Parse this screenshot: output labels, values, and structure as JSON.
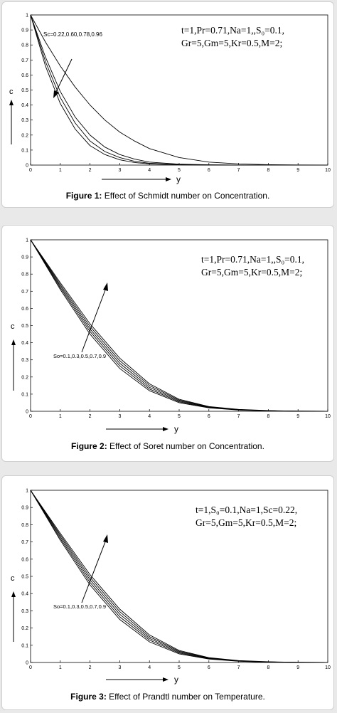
{
  "figures": [
    {
      "caption_label": "Figure 1:",
      "caption_text": " Effect of Schmidt number on Concentration.",
      "params": [
        "t=1,Pr=0.71,Na=1,,S₀=0.1,",
        "Gr=5,Gm=5,Kr=0.5,M=2;"
      ],
      "annotation": "Sc=0.22,0.60,0.78,0.96",
      "xlabel": "y",
      "ylabel": "c"
    },
    {
      "caption_label": "Figure 2:",
      "caption_text": " Effect of Soret number on Concentration.",
      "params": [
        "t=1,Pr=0.71,Na=1,,S₀=0.1,",
        "Gr=5,Gm=5,Kr=0.5,M=2;"
      ],
      "annotation": "So=0.1,0.3,0.5,0.7,0.9",
      "xlabel": "y",
      "ylabel": "c"
    },
    {
      "caption_label": "Figure 3:",
      "caption_text": " Effect of Prandtl number on Temperature.",
      "params": [
        "t=1,S₀=0.1,Na=1,Sc=0.22,",
        "Gr=5,Gm=5,Kr=0.5,M=2;"
      ],
      "annotation": "So=0.1,0.3,0.5,0.7,0.9",
      "xlabel": "y",
      "ylabel": "c"
    }
  ],
  "chart_data": [
    {
      "type": "line",
      "xlabel": "y",
      "ylabel": "c",
      "xlim": [
        0,
        10
      ],
      "ylim": [
        0,
        1
      ],
      "xticks": [
        0,
        1,
        2,
        3,
        4,
        5,
        6,
        7,
        8,
        9,
        10
      ],
      "yticks": [
        0,
        0.1,
        0.2,
        0.3,
        0.4,
        0.5,
        0.6,
        0.7,
        0.8,
        0.9,
        1
      ],
      "grid": false,
      "series": [
        {
          "x": [
            0,
            0.5,
            1,
            1.5,
            2,
            2.5,
            3,
            3.5,
            4,
            5,
            6,
            7,
            8,
            9,
            10
          ],
          "y": [
            1,
            0.82,
            0.66,
            0.52,
            0.4,
            0.3,
            0.22,
            0.16,
            0.11,
            0.05,
            0.02,
            0.008,
            0.003,
            0.001,
            0
          ]
        },
        {
          "x": [
            0,
            0.5,
            1,
            1.5,
            2,
            2.5,
            3,
            3.5,
            4,
            5,
            6,
            7,
            8,
            9,
            10
          ],
          "y": [
            1,
            0.72,
            0.49,
            0.32,
            0.2,
            0.12,
            0.07,
            0.04,
            0.02,
            0.006,
            0.002,
            0,
            0,
            0,
            0
          ]
        },
        {
          "x": [
            0,
            0.5,
            1,
            1.5,
            2,
            2.5,
            3,
            3.5,
            4,
            5,
            6,
            7,
            8,
            9,
            10
          ],
          "y": [
            1,
            0.69,
            0.45,
            0.28,
            0.16,
            0.09,
            0.05,
            0.025,
            0.012,
            0.003,
            0.001,
            0,
            0,
            0,
            0
          ]
        },
        {
          "x": [
            0,
            0.5,
            1,
            1.5,
            2,
            2.5,
            3,
            3.5,
            4,
            5,
            6,
            7,
            8,
            9,
            10
          ],
          "y": [
            1,
            0.66,
            0.41,
            0.24,
            0.13,
            0.07,
            0.035,
            0.017,
            0.008,
            0.002,
            0,
            0,
            0,
            0,
            0
          ]
        }
      ]
    },
    {
      "type": "line",
      "xlabel": "y",
      "ylabel": "c",
      "xlim": [
        0,
        10
      ],
      "ylim": [
        0,
        1
      ],
      "xticks": [
        0,
        1,
        2,
        3,
        4,
        5,
        6,
        7,
        8,
        9,
        10
      ],
      "yticks": [
        0,
        0.1,
        0.2,
        0.3,
        0.4,
        0.5,
        0.6,
        0.7,
        0.8,
        0.9,
        1
      ],
      "grid": false,
      "series": [
        {
          "x": [
            0,
            1,
            2,
            3,
            4,
            5,
            6,
            7,
            8,
            9,
            10
          ],
          "y": [
            1,
            0.71,
            0.45,
            0.25,
            0.12,
            0.05,
            0.02,
            0.007,
            0.002,
            0.001,
            0
          ]
        },
        {
          "x": [
            0,
            1,
            2,
            3,
            4,
            5,
            6,
            7,
            8,
            9,
            10
          ],
          "y": [
            1,
            0.72,
            0.465,
            0.265,
            0.13,
            0.055,
            0.022,
            0.008,
            0.003,
            0.001,
            0
          ]
        },
        {
          "x": [
            0,
            1,
            2,
            3,
            4,
            5,
            6,
            7,
            8,
            9,
            10
          ],
          "y": [
            1,
            0.73,
            0.48,
            0.28,
            0.14,
            0.06,
            0.024,
            0.009,
            0.003,
            0.001,
            0
          ]
        },
        {
          "x": [
            0,
            1,
            2,
            3,
            4,
            5,
            6,
            7,
            8,
            9,
            10
          ],
          "y": [
            1,
            0.74,
            0.495,
            0.295,
            0.15,
            0.065,
            0.026,
            0.01,
            0.003,
            0.001,
            0
          ]
        },
        {
          "x": [
            0,
            1,
            2,
            3,
            4,
            5,
            6,
            7,
            8,
            9,
            10
          ],
          "y": [
            1,
            0.75,
            0.51,
            0.31,
            0.16,
            0.07,
            0.028,
            0.011,
            0.004,
            0.001,
            0
          ]
        }
      ]
    },
    {
      "type": "line",
      "xlabel": "y",
      "ylabel": "c",
      "xlim": [
        0,
        10
      ],
      "ylim": [
        0,
        1
      ],
      "xticks": [
        0,
        1,
        2,
        3,
        4,
        5,
        6,
        7,
        8,
        9,
        10
      ],
      "yticks": [
        0,
        0.1,
        0.2,
        0.3,
        0.4,
        0.5,
        0.6,
        0.7,
        0.8,
        0.9,
        1
      ],
      "grid": false,
      "series": [
        {
          "x": [
            0,
            1,
            2,
            3,
            4,
            5,
            6,
            7,
            8,
            9,
            10
          ],
          "y": [
            1,
            0.71,
            0.45,
            0.25,
            0.12,
            0.05,
            0.02,
            0.007,
            0.002,
            0.001,
            0
          ]
        },
        {
          "x": [
            0,
            1,
            2,
            3,
            4,
            5,
            6,
            7,
            8,
            9,
            10
          ],
          "y": [
            1,
            0.72,
            0.465,
            0.265,
            0.13,
            0.055,
            0.022,
            0.008,
            0.003,
            0.001,
            0
          ]
        },
        {
          "x": [
            0,
            1,
            2,
            3,
            4,
            5,
            6,
            7,
            8,
            9,
            10
          ],
          "y": [
            1,
            0.73,
            0.48,
            0.28,
            0.14,
            0.06,
            0.024,
            0.009,
            0.003,
            0.001,
            0
          ]
        },
        {
          "x": [
            0,
            1,
            2,
            3,
            4,
            5,
            6,
            7,
            8,
            9,
            10
          ],
          "y": [
            1,
            0.74,
            0.495,
            0.295,
            0.15,
            0.065,
            0.026,
            0.01,
            0.003,
            0.001,
            0
          ]
        },
        {
          "x": [
            0,
            1,
            2,
            3,
            4,
            5,
            6,
            7,
            8,
            9,
            10
          ],
          "y": [
            1,
            0.75,
            0.51,
            0.31,
            0.16,
            0.07,
            0.028,
            0.011,
            0.004,
            0.001,
            0
          ]
        }
      ]
    }
  ]
}
